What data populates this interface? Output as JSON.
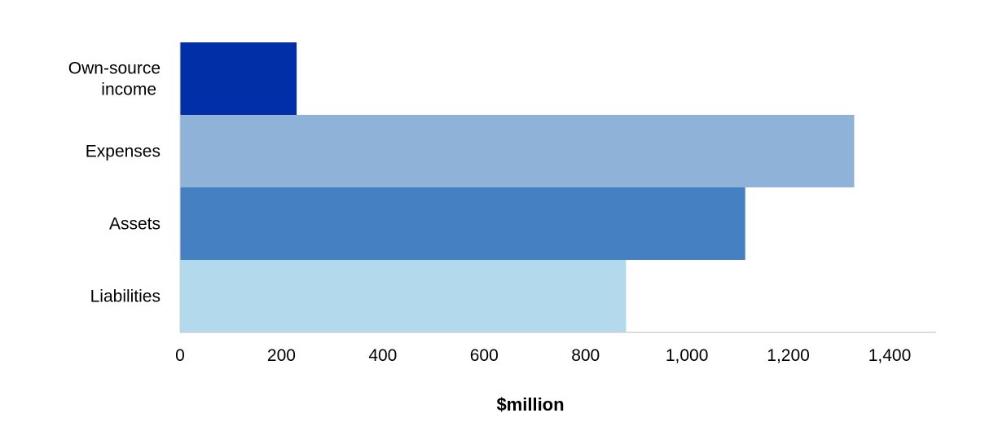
{
  "chart_data": {
    "type": "bar",
    "orientation": "horizontal",
    "categories": [
      [
        "Own-source",
        "income"
      ],
      [
        "Expenses"
      ],
      [
        "Assets"
      ],
      [
        "Liabilities"
      ]
    ],
    "values": [
      230,
      1330,
      1115,
      880
    ],
    "colors": [
      "#002fa7",
      "#8fb2d9",
      "#4580c3",
      "#b3d9ec"
    ],
    "xlabel": "$million",
    "ylabel": "",
    "title": "",
    "xlim": [
      0,
      1500
    ],
    "ticks": [
      0,
      200,
      400,
      600,
      800,
      1000,
      1200,
      1400
    ],
    "tick_labels": [
      "0",
      "200",
      "400",
      "600",
      "800",
      "1,000",
      "1,200",
      "1,400"
    ],
    "grid": false,
    "legend": "none"
  }
}
